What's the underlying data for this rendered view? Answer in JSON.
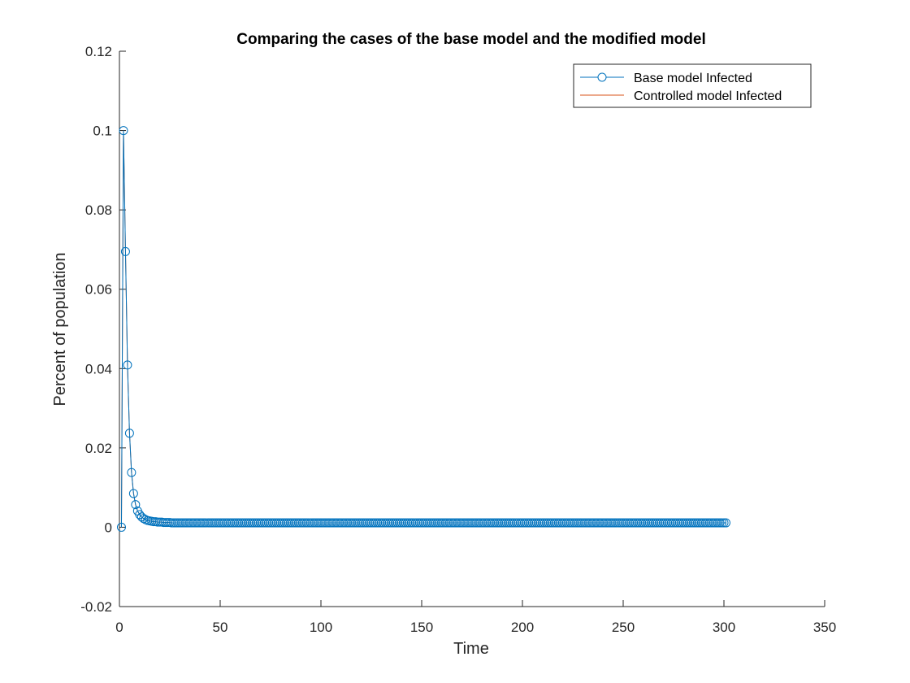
{
  "chart_data": {
    "type": "line",
    "title": "Comparing the cases of the base model and the modified model",
    "xlabel": "Time",
    "ylabel": "Percent of population",
    "xlim": [
      0,
      350
    ],
    "ylim": [
      -0.02,
      0.12
    ],
    "xticks": [
      0,
      50,
      100,
      150,
      200,
      250,
      300,
      350
    ],
    "yticks": [
      -0.02,
      0,
      0.02,
      0.04,
      0.06,
      0.08,
      0.1,
      0.12
    ],
    "xtick_labels": [
      "0",
      "50",
      "100",
      "150",
      "200",
      "250",
      "300",
      "350"
    ],
    "ytick_labels": [
      "-0.02",
      "0",
      "0.02",
      "0.04",
      "0.06",
      "0.08",
      "0.1",
      "0.12"
    ],
    "grid": false,
    "legend_position": "top-right",
    "series": [
      {
        "name": "Base model Infected",
        "color": "#0072BD",
        "marker": "circle",
        "line": true,
        "x_start": 1,
        "x_end": 301,
        "x_step": 1,
        "values_head": [
          0,
          0.1,
          0.0695,
          0.0409,
          0.0237,
          0.0138,
          0.0085,
          0.0057,
          0.0041,
          0.0032,
          0.0026,
          0.0022,
          0.0019,
          0.0017,
          0.0016,
          0.0015,
          0.0014,
          0.0014,
          0.0013,
          0.0013,
          0.0013,
          0.0012,
          0.0012,
          0.0012,
          0.0012
        ],
        "steady_value": 0.0011
      },
      {
        "name": "Controlled model Infected",
        "color": "#D95319",
        "marker": "none",
        "line": true,
        "x_start": 1,
        "x_end": 301,
        "x_step": 1,
        "values_head": [
          0,
          0.1,
          0.0695,
          0.0409,
          0.0237,
          0.0138,
          0.0085,
          0.0057,
          0.0041,
          0.0032,
          0.0026,
          0.0022,
          0.0019,
          0.0017,
          0.0016,
          0.0015,
          0.0014,
          0.0014,
          0.0013,
          0.0013,
          0.0013,
          0.0012,
          0.0012,
          0.0012,
          0.0012
        ],
        "steady_value": 0.0011
      }
    ]
  }
}
